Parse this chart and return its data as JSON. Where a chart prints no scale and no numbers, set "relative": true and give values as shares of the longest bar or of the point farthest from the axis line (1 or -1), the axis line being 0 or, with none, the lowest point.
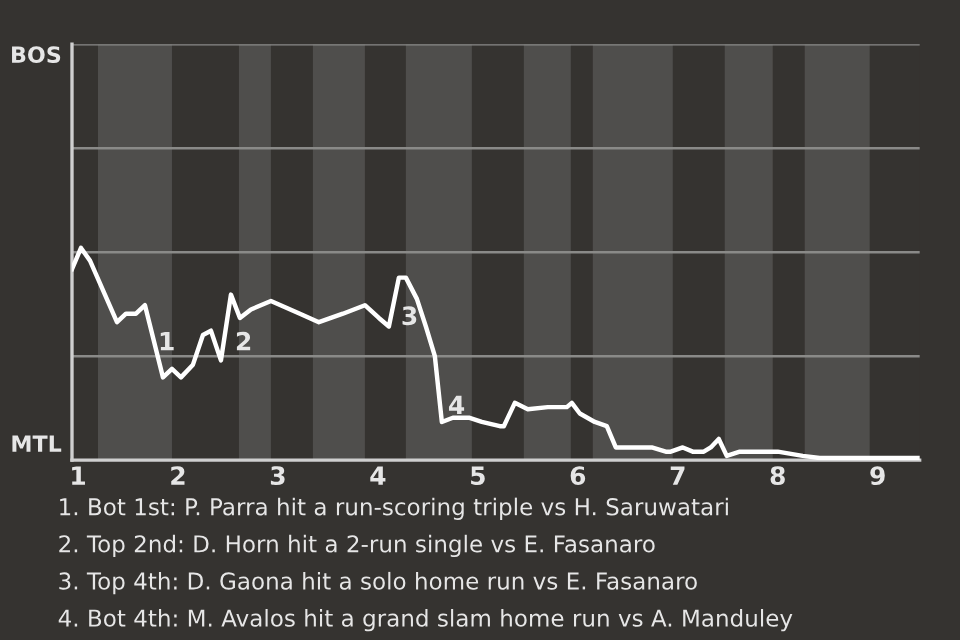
{
  "chart_data": {
    "type": "line",
    "relative": true,
    "x": [
      0.94,
      1.03,
      1.12,
      1.39,
      1.48,
      1.58,
      1.67,
      1.85,
      1.94,
      2.03,
      2.15,
      2.25,
      2.33,
      2.43,
      2.53,
      2.62,
      2.73,
      2.93,
      3.22,
      3.41,
      3.65,
      3.87,
      4.01,
      4.11,
      4.21,
      4.28,
      4.39,
      4.48,
      4.57,
      4.64,
      4.75,
      4.91,
      5.04,
      5.22,
      5.26,
      5.37,
      5.5,
      5.7,
      5.89,
      5.94,
      6.02,
      6.17,
      6.29,
      6.38,
      6.48,
      6.6,
      6.74,
      6.88,
      6.93,
      7.05,
      7.15,
      7.26,
      7.33,
      7.41,
      7.49,
      7.62,
      7.9,
      8.0,
      8.25,
      8.42,
      9.42
    ],
    "series": [
      {
        "color": "#ffffff",
        "values": [
          0.9,
          1,
          0.94,
          0.65,
          0.69,
          0.69,
          0.73,
          0.39,
          0.43,
          0.39,
          0.45,
          0.59,
          0.61,
          0.47,
          0.78,
          0.67,
          0.71,
          0.75,
          0.69,
          0.65,
          0.69,
          0.73,
          0.67,
          0.63,
          0.86,
          0.86,
          0.76,
          0.63,
          0.49,
          0.18,
          0.2,
          0.2,
          0.18,
          0.16,
          0.16,
          0.27,
          0.24,
          0.25,
          0.25,
          0.27,
          0.22,
          0.18,
          0.16,
          0.06,
          0.06,
          0.06,
          0.06,
          0.04,
          0.04,
          0.06,
          0.04,
          0.04,
          0.06,
          0.1,
          0.02,
          0.04,
          0.04,
          0.04,
          0.02,
          0.01,
          0.01
        ]
      }
    ],
    "xlim": [
      0.94,
      9.42
    ],
    "xticks": [
      1,
      2,
      3,
      4,
      5,
      6,
      7,
      8,
      9
    ],
    "ref_lines": [
      {
        "axis": "y",
        "value": 0.49,
        "color": "#8a8a88"
      },
      {
        "axis": "y",
        "value": 0.98,
        "color": "#8a8a88"
      },
      {
        "axis": "y",
        "value": 1.47,
        "color": "#8a8a88"
      },
      {
        "axis": "y",
        "value": 1.96,
        "color": "#8a8a88"
      }
    ],
    "marker": "none",
    "line_style": "solid",
    "bands": [
      {
        "axis": "x",
        "from": 1.2,
        "to": 1.94,
        "color": "#4f4e4c"
      },
      {
        "axis": "x",
        "from": 2.61,
        "to": 2.93,
        "color": "#4f4e4c"
      },
      {
        "axis": "x",
        "from": 3.35,
        "to": 3.87,
        "color": "#4f4e4c"
      },
      {
        "axis": "x",
        "from": 4.28,
        "to": 4.94,
        "color": "#4f4e4c"
      },
      {
        "axis": "x",
        "from": 5.46,
        "to": 5.93,
        "color": "#4f4e4c"
      },
      {
        "axis": "x",
        "from": 6.15,
        "to": 6.95,
        "color": "#4f4e4c"
      },
      {
        "axis": "x",
        "from": 7.47,
        "to": 7.95,
        "color": "#4f4e4c"
      },
      {
        "axis": "x",
        "from": 8.27,
        "to": 8.92,
        "color": "#4f4e4c"
      }
    ],
    "annotations": [
      {
        "text": "1",
        "x": 1.8,
        "y": 0.55
      },
      {
        "text": "2",
        "x": 2.57,
        "y": 0.55
      },
      {
        "text": "3",
        "x": 4.23,
        "y": 0.67
      },
      {
        "text": "4",
        "x": 4.7,
        "y": 0.25
      },
      "BOS",
      "MTL",
      "1. Bot 1st: P. Parra hit a run-scoring triple vs H. Saruwatari",
      "2. Top 2nd: D. Horn hit a 2-run single vs E. Fasanaro",
      "3. Top 4th: D. Gaona hit a solo home run vs E. Fasanaro",
      "4. Bot 4th: M. Avalos hit a grand slam home run vs A. Manduley"
    ]
  }
}
